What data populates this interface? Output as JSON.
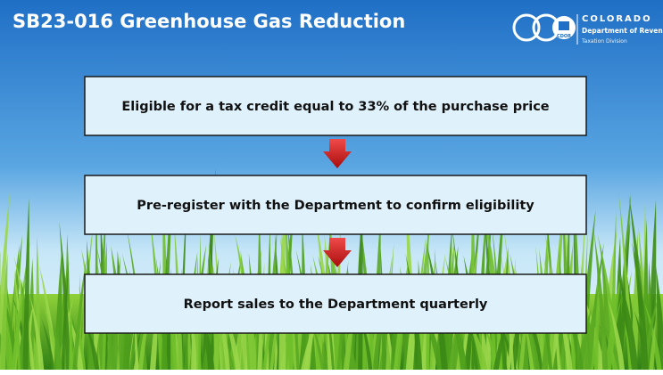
{
  "header": {
    "title": "SB23-016 Greenhouse Gas Reduction",
    "logo": {
      "badge": "CDOR",
      "name": "COLORADO",
      "department": "Department of Revenue",
      "division": "Taxation Division"
    }
  },
  "steps": [
    "Eligible for a tax credit equal to 33% of the purchase price",
    "Pre-register with the Department to confirm eligibility",
    "Report sales to the Department quarterly"
  ]
}
